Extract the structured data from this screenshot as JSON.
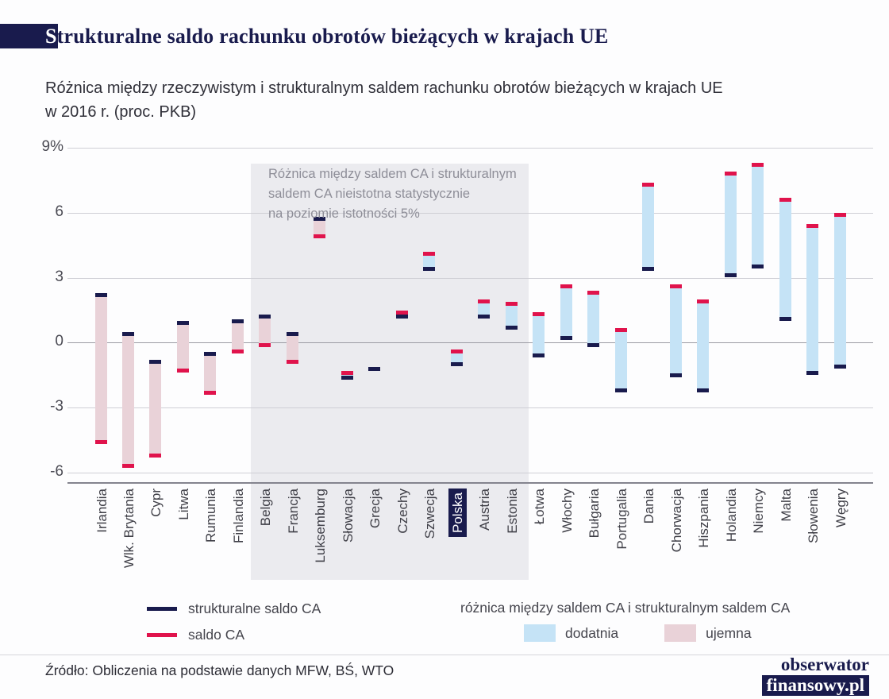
{
  "header": {
    "title_accent": "S",
    "title_rest": "trukturalne saldo rachunku obrotów bieżących w krajach UE",
    "subtitle": "Różnica między rzeczywistym i strukturalnym saldem rachunku obrotów bieżących w krajach UE\nw 2016 r. (proc. PKB)"
  },
  "colors": {
    "navy": "#191b4d",
    "red": "#e0134c",
    "positive_fill": "#c5e3f6",
    "negative_fill": "#e9d2d8",
    "region": "#ebebef",
    "gridline": "#cfcfd5",
    "zero_line": "#9b9ba4",
    "axis_line": "#84848e"
  },
  "chart_data": {
    "type": "bar",
    "variant": "floating-range-bar",
    "title": "Strukturalne saldo rachunku obrotów bieżących w krajach UE",
    "subtitle": "Różnica między rzeczywistym i strukturalnym saldem rachunku obrotów bieżących w krajach UE w 2016 r. (proc. PKB)",
    "unit": "proc. PKB",
    "ylim": [
      -6.6,
      9.2
    ],
    "grid": "horizontal",
    "y_ticks": [
      {
        "value": 9,
        "label": "9%"
      },
      {
        "value": 6,
        "label": "6"
      },
      {
        "value": 3,
        "label": "3"
      },
      {
        "value": 0,
        "label": "0"
      },
      {
        "value": -3,
        "label": "-3"
      },
      {
        "value": -6,
        "label": "-6"
      }
    ],
    "series_names": [
      "strukturalne saldo CA",
      "saldo CA"
    ],
    "series": [
      {
        "country": "Irlandia",
        "structural_ca": 2.2,
        "ca": -4.6
      },
      {
        "country": "Wlk. Brytania",
        "structural_ca": 0.4,
        "ca": -5.7
      },
      {
        "country": "Cypr",
        "structural_ca": -0.9,
        "ca": -5.2
      },
      {
        "country": "Litwa",
        "structural_ca": 0.9,
        "ca": -1.3
      },
      {
        "country": "Rumunia",
        "structural_ca": -0.5,
        "ca": -2.3
      },
      {
        "country": "Finlandia",
        "structural_ca": 1.0,
        "ca": -0.4
      },
      {
        "country": "Belgia",
        "structural_ca": 1.2,
        "ca": -0.1
      },
      {
        "country": "Francja",
        "structural_ca": 0.4,
        "ca": -0.9
      },
      {
        "country": "Luksemburg",
        "structural_ca": 5.7,
        "ca": 4.9
      },
      {
        "country": "Słowacja",
        "structural_ca": -1.6,
        "ca": -1.4
      },
      {
        "country": "Grecja",
        "structural_ca": -1.2,
        "ca": -1.2
      },
      {
        "country": "Czechy",
        "structural_ca": 1.2,
        "ca": 1.4
      },
      {
        "country": "Szwecja",
        "structural_ca": 3.4,
        "ca": 4.1
      },
      {
        "country": "Polska",
        "structural_ca": -1.0,
        "ca": -0.4
      },
      {
        "country": "Austria",
        "structural_ca": 1.2,
        "ca": 1.9
      },
      {
        "country": "Estonia",
        "structural_ca": 0.7,
        "ca": 1.8
      },
      {
        "country": "Łotwa",
        "structural_ca": -0.6,
        "ca": 1.3
      },
      {
        "country": "Włochy",
        "structural_ca": 0.2,
        "ca": 2.6
      },
      {
        "country": "Bułgaria",
        "structural_ca": -0.1,
        "ca": 2.3
      },
      {
        "country": "Portugalia",
        "structural_ca": -2.2,
        "ca": 0.6
      },
      {
        "country": "Dania",
        "structural_ca": 3.4,
        "ca": 7.3
      },
      {
        "country": "Chorwacja",
        "structural_ca": -1.5,
        "ca": 2.6
      },
      {
        "country": "Hiszpania",
        "structural_ca": -2.2,
        "ca": 1.9
      },
      {
        "country": "Holandia",
        "structural_ca": 3.1,
        "ca": 7.8
      },
      {
        "country": "Niemcy",
        "structural_ca": 3.5,
        "ca": 8.2
      },
      {
        "country": "Malta",
        "structural_ca": 1.1,
        "ca": 6.6
      },
      {
        "country": "Słowenia",
        "structural_ca": -1.4,
        "ca": 5.4
      },
      {
        "country": "Węgry",
        "structural_ca": -1.1,
        "ca": 5.9
      }
    ],
    "highlight_region": {
      "from_index": 6,
      "to_index": 15,
      "note": "Różnica między saldem CA i strukturalnym\nsaldem CA nieistotna statystycznie\nna poziomie istotności 5%"
    },
    "highlighted_country": "Polska"
  },
  "legend": {
    "structural_label": "strukturalne saldo CA",
    "ca_label": "saldo CA",
    "diff_title": "różnica między saldem CA i strukturalnym saldem CA",
    "positive_label": "dodatnia",
    "negative_label": "ujemna"
  },
  "footer": {
    "source": "Źródło: Obliczenia na podstawie danych MFW, BŚ, WTO",
    "logo_line1": "obserwator",
    "logo_line2": "finansowy.pl"
  }
}
